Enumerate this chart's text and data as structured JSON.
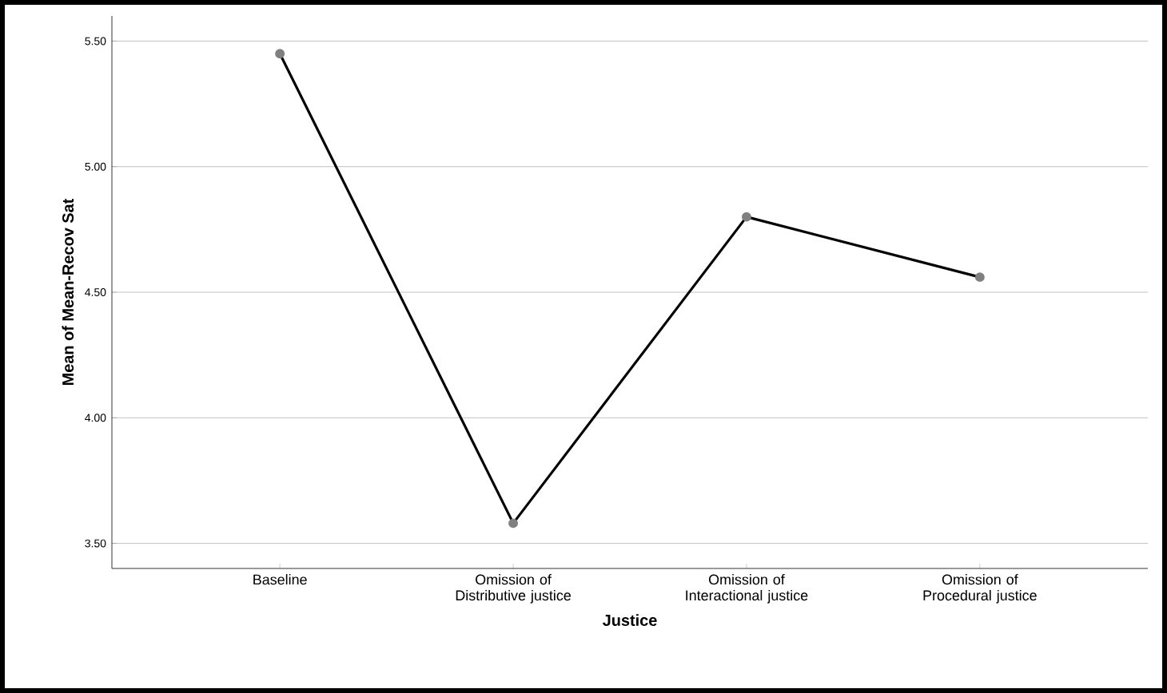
{
  "chart_data": {
    "type": "line",
    "xlabel": "Justice",
    "ylabel": "Mean of Mean-Recov Sat",
    "categories": [
      "Baseline",
      "Omission of Distributive justice",
      "Omission of Interactional justice",
      "Omission of Procedural justice"
    ],
    "series": [
      {
        "color": "#000000",
        "values": [
          5.45,
          3.58,
          4.8,
          4.56
        ]
      }
    ],
    "ylim": [
      3.4,
      5.6
    ],
    "yticks": [
      {
        "value": 3.5,
        "label": "3.50"
      },
      {
        "value": 4.0,
        "label": "4.00"
      },
      {
        "value": 4.5,
        "label": "4.50"
      },
      {
        "value": 5.0,
        "label": "5.00"
      },
      {
        "value": 5.5,
        "label": "5.50"
      }
    ],
    "grid": "y",
    "marker": "circle"
  }
}
